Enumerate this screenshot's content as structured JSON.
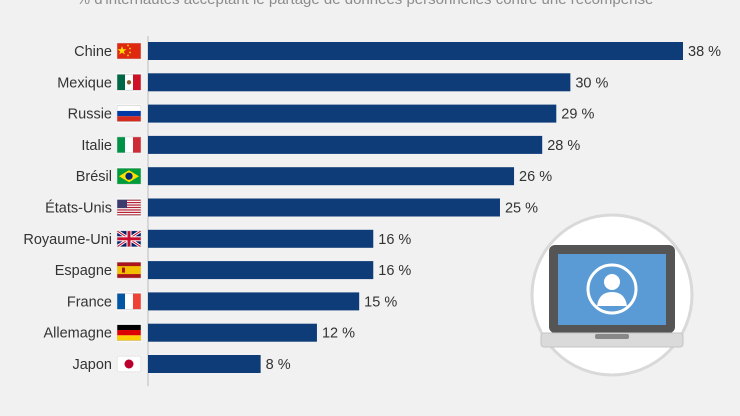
{
  "chart_data": {
    "type": "bar",
    "orientation": "horizontal",
    "subtitle": "% d'internautes acceptant le partage de données personnelles contre une récompense *",
    "categories": [
      "Chine",
      "Mexique",
      "Russie",
      "Italie",
      "Brésil",
      "États-Unis",
      "Royaume-Uni",
      "Espagne",
      "France",
      "Allemagne",
      "Japon"
    ],
    "values": [
      38,
      30,
      29,
      28,
      26,
      25,
      16,
      16,
      15,
      12,
      8
    ],
    "value_suffix": " %",
    "flags": [
      "china-flag-icon",
      "mexico-flag-icon",
      "russia-flag-icon",
      "italy-flag-icon",
      "brazil-flag-icon",
      "usa-flag-icon",
      "uk-flag-icon",
      "spain-flag-icon",
      "france-flag-icon",
      "germany-flag-icon",
      "japan-flag-icon"
    ],
    "xlim": [
      0,
      38
    ],
    "grid": false,
    "bar_color": "#0e3c78",
    "text_color": "#333333",
    "subtitle_color": "#8c8c8c",
    "background": "#f1f1f1"
  },
  "illustration": {
    "icon": "laptop-user-icon",
    "circle_color": "#ffffff",
    "circle_border": "#d9d9d9",
    "screen_color": "#5b9bd5",
    "frame_color": "#555555",
    "base_color": "#dadada"
  }
}
